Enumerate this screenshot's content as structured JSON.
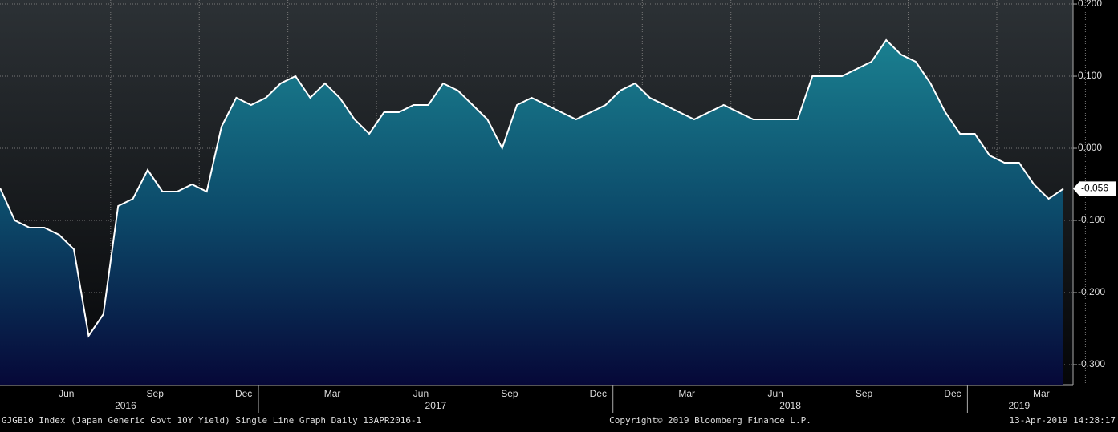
{
  "chart_data": {
    "type": "area",
    "title": null,
    "x": [
      "2016-04",
      "2016-04",
      "2016-05",
      "2016-05",
      "2016-06",
      "2016-06",
      "2016-07",
      "2016-07",
      "2016-08",
      "2016-08",
      "2016-09",
      "2016-09",
      "2016-10",
      "2016-10",
      "2016-11",
      "2016-11",
      "2016-12",
      "2016-12",
      "2017-01",
      "2017-01",
      "2017-02",
      "2017-02",
      "2017-03",
      "2017-03",
      "2017-04",
      "2017-04",
      "2017-05",
      "2017-05",
      "2017-06",
      "2017-06",
      "2017-07",
      "2017-07",
      "2017-08",
      "2017-08",
      "2017-09",
      "2017-09",
      "2017-10",
      "2017-10",
      "2017-11",
      "2017-11",
      "2017-12",
      "2017-12",
      "2018-01",
      "2018-01",
      "2018-02",
      "2018-02",
      "2018-03",
      "2018-03",
      "2018-04",
      "2018-04",
      "2018-05",
      "2018-05",
      "2018-06",
      "2018-06",
      "2018-07",
      "2018-07",
      "2018-08",
      "2018-08",
      "2018-09",
      "2018-09",
      "2018-10",
      "2018-10",
      "2018-11",
      "2018-11",
      "2018-12",
      "2018-12",
      "2019-01",
      "2019-01",
      "2019-02",
      "2019-02",
      "2019-03",
      "2019-03",
      "2019-04"
    ],
    "series": [
      {
        "name": "GJGB10 Index",
        "color": "#ffffff",
        "values": [
          -0.055,
          -0.1,
          -0.11,
          -0.11,
          -0.12,
          -0.14,
          -0.26,
          -0.23,
          -0.08,
          -0.07,
          -0.03,
          -0.06,
          -0.06,
          -0.05,
          -0.06,
          0.03,
          0.07,
          0.06,
          0.07,
          0.09,
          0.1,
          0.07,
          0.09,
          0.07,
          0.04,
          0.02,
          0.05,
          0.05,
          0.06,
          0.06,
          0.09,
          0.08,
          0.06,
          0.04,
          0.0,
          0.06,
          0.07,
          0.06,
          0.05,
          0.04,
          0.05,
          0.06,
          0.08,
          0.09,
          0.07,
          0.06,
          0.05,
          0.04,
          0.05,
          0.06,
          0.05,
          0.04,
          0.04,
          0.04,
          0.04,
          0.1,
          0.1,
          0.1,
          0.11,
          0.12,
          0.15,
          0.13,
          0.12,
          0.09,
          0.05,
          0.02,
          0.02,
          -0.01,
          -0.02,
          -0.02,
          -0.05,
          -0.07,
          -0.056
        ]
      }
    ],
    "ylim": [
      -0.3278,
      0.2056
    ],
    "yticks": [
      {
        "value": 0.2,
        "label": "0.200"
      },
      {
        "value": 0.1,
        "label": "0.100"
      },
      {
        "value": 0,
        "label": "0.000"
      },
      {
        "value": -0.1,
        "label": "-0.100"
      },
      {
        "value": -0.2,
        "label": "-0.200"
      },
      {
        "value": -0.3,
        "label": "-0.300"
      }
    ],
    "xticks": [
      {
        "value": "2016-06",
        "label": "Jun"
      },
      {
        "value": "2016-09",
        "label": "Sep"
      },
      {
        "value": "2016-12",
        "label": "Dec"
      },
      {
        "value": "2017-03",
        "label": "Mar"
      },
      {
        "value": "2017-06",
        "label": "Jun"
      },
      {
        "value": "2017-09",
        "label": "Sep"
      },
      {
        "value": "2017-12",
        "label": "Dec"
      },
      {
        "value": "2018-03",
        "label": "Mar"
      },
      {
        "value": "2018-06",
        "label": "Jun"
      },
      {
        "value": "2018-09",
        "label": "Sep"
      },
      {
        "value": "2018-12",
        "label": "Dec"
      },
      {
        "value": "2019-03",
        "label": "Mar"
      }
    ],
    "years": [
      "2016",
      "2017",
      "2018",
      "2019"
    ],
    "grid": true
  },
  "footer": {
    "left": "GJGB10 Index (Japan Generic Govt 10Y Yield) Single Line Graph  Daily 13APR2016-1",
    "center": "Copyright© 2019 Bloomberg Finance L.P.",
    "right": "13-Apr-2019 14:28:17"
  }
}
